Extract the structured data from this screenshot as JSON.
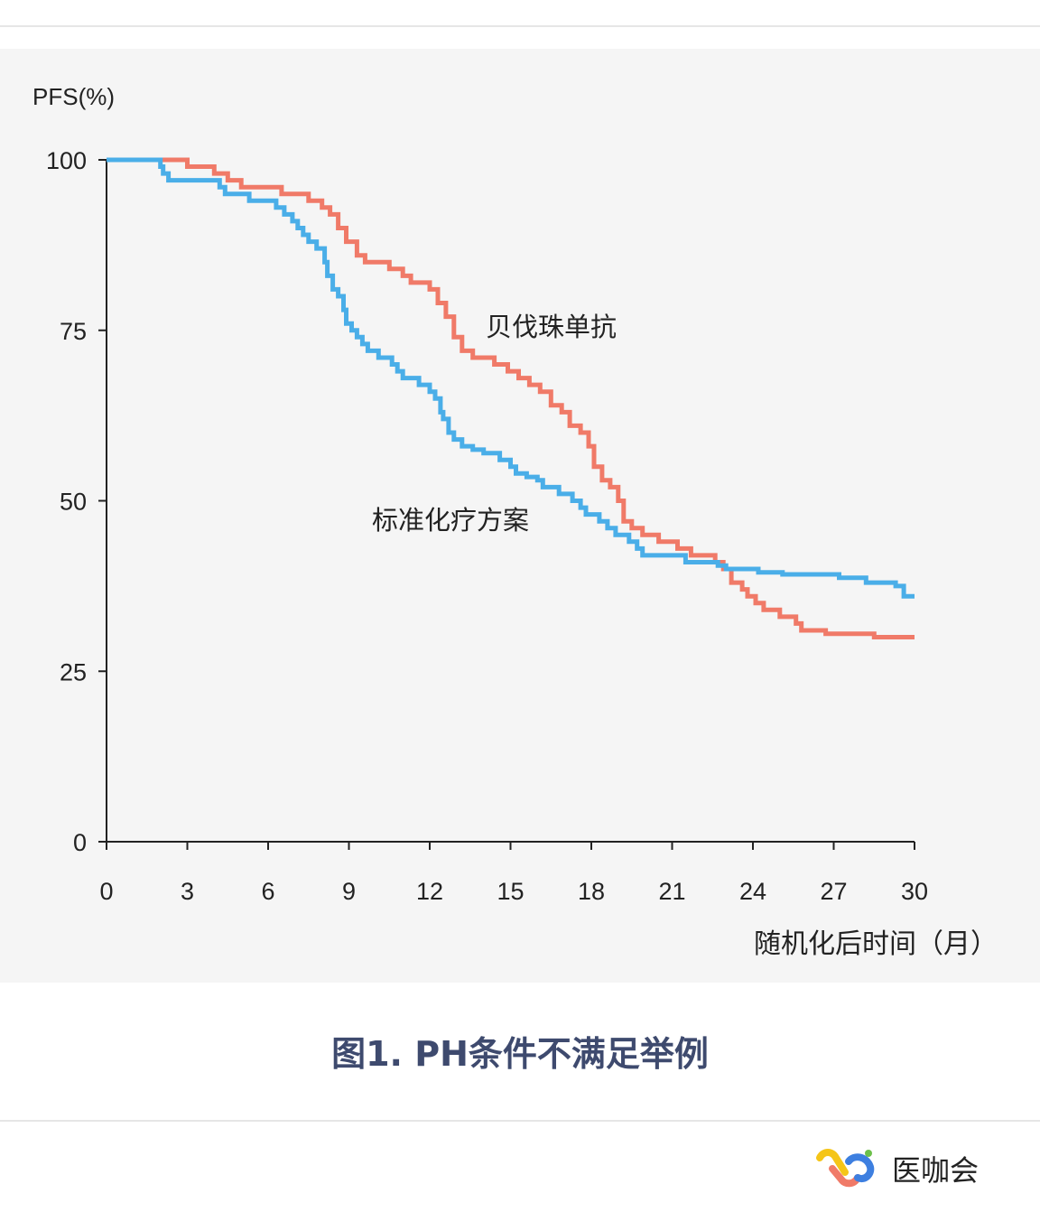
{
  "figure": {
    "caption": "图1. PH条件不满足举例",
    "brand_name": "医咖会"
  },
  "colors": {
    "panel_background": "#f5f5f5",
    "axis": "#222222",
    "caption": "#3e4a6e"
  },
  "chart_data": {
    "type": "line",
    "ylabel": "PFS(%)",
    "xlabel": "随机化后时间（月）",
    "xlim": [
      0,
      30
    ],
    "ylim": [
      0,
      100
    ],
    "xticks": [
      0,
      3,
      6,
      9,
      12,
      15,
      18,
      21,
      24,
      27,
      30
    ],
    "yticks": [
      0,
      25,
      50,
      75,
      100
    ],
    "grid": false,
    "series": [
      {
        "name": "贝伐珠单抗",
        "color": "#f07a68",
        "step": true,
        "points": [
          [
            0,
            100
          ],
          [
            3,
            99
          ],
          [
            4,
            98
          ],
          [
            4.5,
            97
          ],
          [
            5,
            96
          ],
          [
            6,
            96
          ],
          [
            6.5,
            95
          ],
          [
            7,
            95
          ],
          [
            7.5,
            94
          ],
          [
            8,
            93
          ],
          [
            8.3,
            92
          ],
          [
            8.6,
            90
          ],
          [
            8.9,
            88
          ],
          [
            9.3,
            86
          ],
          [
            9.6,
            85
          ],
          [
            10,
            85
          ],
          [
            10.5,
            84
          ],
          [
            11,
            83
          ],
          [
            11.3,
            82
          ],
          [
            12,
            81
          ],
          [
            12.3,
            79
          ],
          [
            12.6,
            77
          ],
          [
            12.9,
            74
          ],
          [
            13.2,
            72
          ],
          [
            13.6,
            71
          ],
          [
            14,
            71
          ],
          [
            14.4,
            70
          ],
          [
            14.9,
            69
          ],
          [
            15.3,
            68
          ],
          [
            15.7,
            67
          ],
          [
            16.1,
            66
          ],
          [
            16.5,
            64
          ],
          [
            16.9,
            63
          ],
          [
            17.2,
            61
          ],
          [
            17.6,
            60
          ],
          [
            17.9,
            58
          ],
          [
            18.1,
            55
          ],
          [
            18.4,
            53
          ],
          [
            18.7,
            52
          ],
          [
            19,
            50
          ],
          [
            19.2,
            47
          ],
          [
            19.5,
            46
          ],
          [
            19.9,
            45
          ],
          [
            20.5,
            44
          ],
          [
            21.2,
            43
          ],
          [
            21.7,
            42
          ],
          [
            22.6,
            41
          ],
          [
            22.9,
            40
          ],
          [
            23.2,
            38
          ],
          [
            23.6,
            37
          ],
          [
            23.8,
            36
          ],
          [
            24.1,
            35
          ],
          [
            24.4,
            34
          ],
          [
            25,
            33
          ],
          [
            25.6,
            32
          ],
          [
            25.8,
            31
          ],
          [
            26.7,
            30.5
          ],
          [
            28.5,
            30
          ],
          [
            30,
            30
          ]
        ],
        "annotation": "贝伐珠单抗"
      },
      {
        "name": "标准化疗方案",
        "color": "#4aaee8",
        "step": true,
        "points": [
          [
            0,
            100
          ],
          [
            2,
            99
          ],
          [
            2.1,
            98
          ],
          [
            2.3,
            97
          ],
          [
            3.5,
            97
          ],
          [
            4.2,
            96
          ],
          [
            4.4,
            95
          ],
          [
            5,
            95
          ],
          [
            5.3,
            94
          ],
          [
            6,
            94
          ],
          [
            6.3,
            93
          ],
          [
            6.6,
            92
          ],
          [
            6.9,
            91
          ],
          [
            7.1,
            90
          ],
          [
            7.3,
            89
          ],
          [
            7.5,
            88
          ],
          [
            7.8,
            87
          ],
          [
            8.1,
            85
          ],
          [
            8.2,
            83
          ],
          [
            8.4,
            81
          ],
          [
            8.6,
            80
          ],
          [
            8.8,
            78
          ],
          [
            8.9,
            76
          ],
          [
            9.1,
            75
          ],
          [
            9.3,
            74
          ],
          [
            9.5,
            73
          ],
          [
            9.7,
            72
          ],
          [
            10.1,
            71
          ],
          [
            10.6,
            70
          ],
          [
            10.8,
            69
          ],
          [
            11,
            68
          ],
          [
            11.6,
            67
          ],
          [
            11.9,
            67
          ],
          [
            12,
            66
          ],
          [
            12.2,
            65
          ],
          [
            12.4,
            63
          ],
          [
            12.5,
            62
          ],
          [
            12.7,
            60
          ],
          [
            12.9,
            59
          ],
          [
            13.2,
            58
          ],
          [
            13.6,
            57.5
          ],
          [
            14,
            57
          ],
          [
            14.6,
            56
          ],
          [
            15,
            55
          ],
          [
            15.2,
            54
          ],
          [
            15.6,
            53.5
          ],
          [
            16,
            53
          ],
          [
            16.2,
            52
          ],
          [
            16.8,
            51
          ],
          [
            17.3,
            50
          ],
          [
            17.6,
            49
          ],
          [
            17.8,
            48
          ],
          [
            18.3,
            47
          ],
          [
            18.6,
            46
          ],
          [
            18.9,
            45
          ],
          [
            19.4,
            44
          ],
          [
            19.7,
            43
          ],
          [
            19.9,
            42
          ],
          [
            21.5,
            41
          ],
          [
            22.7,
            40.5
          ],
          [
            23,
            40
          ],
          [
            24.2,
            39.5
          ],
          [
            25.1,
            39.2
          ],
          [
            27.2,
            38.7
          ],
          [
            28.2,
            38
          ],
          [
            29.3,
            37.5
          ],
          [
            29.6,
            36
          ],
          [
            30,
            36
          ]
        ],
        "annotation": "标准化疗方案"
      }
    ]
  }
}
